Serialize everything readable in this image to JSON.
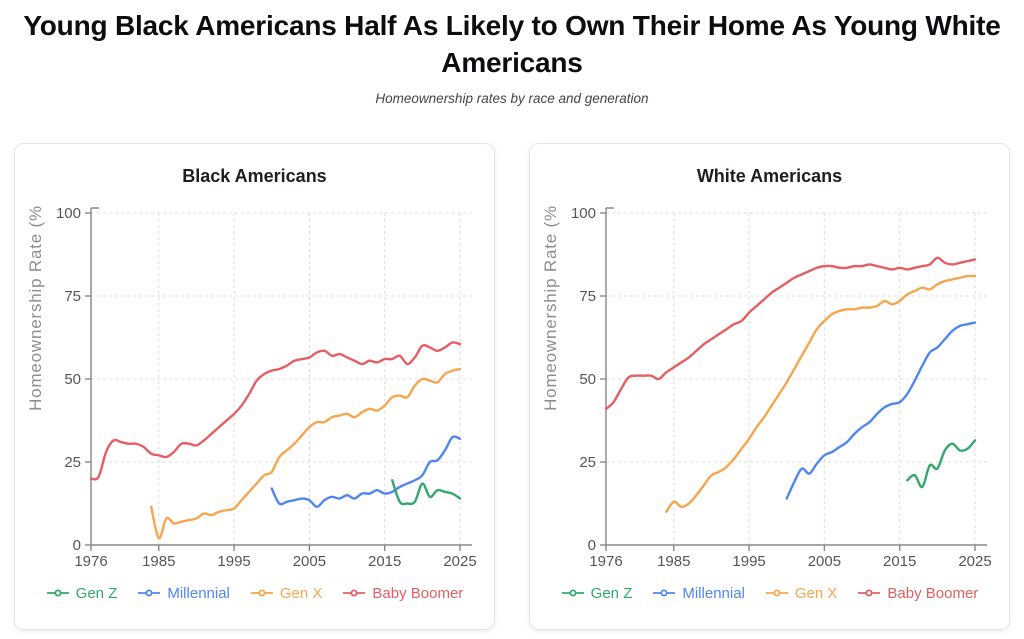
{
  "page": {
    "title": "Young Black Americans Half As Likely to Own Their Home As Young White Americans",
    "subtitle": "Homeownership rates by race and generation"
  },
  "colors": {
    "gen_z": "#34a76d",
    "millennial": "#4f86ef",
    "gen_x": "#f5a64d",
    "baby_boomer": "#e45e63",
    "axis": "#85878a",
    "grid": "#dcdce0",
    "tick_text": "#54565a",
    "axis_title_text": "#8c8e92"
  },
  "chart_data": [
    {
      "type": "line",
      "title": "Black Americans",
      "xlabel": "",
      "ylabel": "Homeownership Rate (%",
      "x_range": [
        1976,
        2025
      ],
      "ylim": [
        0,
        100
      ],
      "xticks": [
        1976,
        1985,
        1995,
        2005,
        2015,
        2025
      ],
      "yticks": [
        0,
        25,
        50,
        75,
        100
      ],
      "grid": true,
      "legend_position": "bottom",
      "series": [
        {
          "name": "Gen Z",
          "color": "gen_z",
          "start_year": 2016,
          "values": [
            19.5,
            13,
            12.5,
            13,
            18.5,
            14.5,
            16.5,
            16,
            15.5,
            14
          ]
        },
        {
          "name": "Millennial",
          "color": "millennial",
          "start_year": 2000,
          "values": [
            17,
            12.5,
            13,
            13.5,
            14,
            13.5,
            11.5,
            13.5,
            14.5,
            14,
            15,
            14,
            15.5,
            15.5,
            16.5,
            15.5,
            16,
            17.5,
            18.5,
            19.5,
            21,
            25,
            25.5,
            28.5,
            32.5,
            32
          ]
        },
        {
          "name": "Gen X",
          "color": "gen_x",
          "start_year": 1984,
          "values": [
            11.5,
            2,
            8,
            6.5,
            7,
            7.5,
            8,
            9.5,
            9,
            10,
            10.5,
            11,
            13.5,
            16,
            18.5,
            21,
            22,
            26.5,
            28.5,
            30.5,
            33,
            35.5,
            37,
            37,
            38.5,
            39,
            39.5,
            38.5,
            40,
            41,
            40.5,
            42,
            44.5,
            45,
            44.5,
            48,
            50,
            49.5,
            49,
            51.5,
            52.5,
            53
          ]
        },
        {
          "name": "Baby Boomer",
          "color": "baby_boomer",
          "start_year": 1976,
          "values": [
            20,
            20.5,
            28,
            31.5,
            31,
            30.5,
            30.5,
            29.5,
            27.5,
            27,
            26.5,
            28,
            30.5,
            30.5,
            30,
            31.5,
            33.5,
            35.5,
            37.5,
            39.5,
            42,
            45.5,
            49.5,
            51.5,
            52.5,
            53,
            54,
            55.5,
            56,
            56.5,
            58,
            58.5,
            57,
            57.5,
            56.5,
            55.5,
            54.5,
            55.5,
            55,
            56,
            56,
            57,
            54.5,
            56.5,
            60,
            59.5,
            58.5,
            59.5,
            61,
            60.5
          ]
        }
      ]
    },
    {
      "type": "line",
      "title": "White Americans",
      "xlabel": "",
      "ylabel": "Homeownership Rate (%",
      "x_range": [
        1976,
        2025
      ],
      "ylim": [
        0,
        100
      ],
      "xticks": [
        1976,
        1985,
        1995,
        2005,
        2015,
        2025
      ],
      "yticks": [
        0,
        25,
        50,
        75,
        100
      ],
      "grid": true,
      "legend_position": "bottom",
      "series": [
        {
          "name": "Gen Z",
          "color": "gen_z",
          "start_year": 2016,
          "values": [
            19.5,
            21,
            17.5,
            24,
            23,
            28.5,
            30.5,
            28.5,
            29,
            31.5
          ]
        },
        {
          "name": "Millennial",
          "color": "millennial",
          "start_year": 2000,
          "values": [
            14,
            19,
            23,
            21.5,
            24.5,
            27,
            28,
            29.5,
            31,
            33.5,
            35.5,
            37,
            39.5,
            41.5,
            42.5,
            43,
            45.5,
            49.5,
            54,
            58,
            59.5,
            62,
            64.5,
            66,
            66.5,
            67
          ]
        },
        {
          "name": "Gen X",
          "color": "gen_x",
          "start_year": 1984,
          "values": [
            10,
            13,
            11.5,
            12.5,
            15,
            18,
            21,
            22,
            23.5,
            26,
            29,
            32,
            35.5,
            38.5,
            42,
            45.5,
            49,
            53,
            57,
            61,
            65,
            67.5,
            69.5,
            70.5,
            71,
            71,
            71.5,
            71.5,
            72,
            73.5,
            72.5,
            73.5,
            75.5,
            76.5,
            77.5,
            77,
            78.5,
            79.5,
            80,
            80.5,
            81,
            81
          ]
        },
        {
          "name": "Baby Boomer",
          "color": "baby_boomer",
          "start_year": 1976,
          "values": [
            41,
            43,
            47,
            50.5,
            51,
            51,
            51,
            50,
            52,
            53.5,
            55,
            56.5,
            58.5,
            60.5,
            62,
            63.5,
            65,
            66.5,
            67.5,
            70,
            72,
            74,
            76,
            77.5,
            79,
            80.5,
            81.5,
            82.5,
            83.5,
            84,
            84,
            83.5,
            83.5,
            84,
            84,
            84.5,
            84,
            83.5,
            83,
            83.5,
            83,
            83.5,
            84,
            84.5,
            86.5,
            85,
            84.5,
            85,
            85.5,
            86
          ]
        }
      ]
    }
  ]
}
